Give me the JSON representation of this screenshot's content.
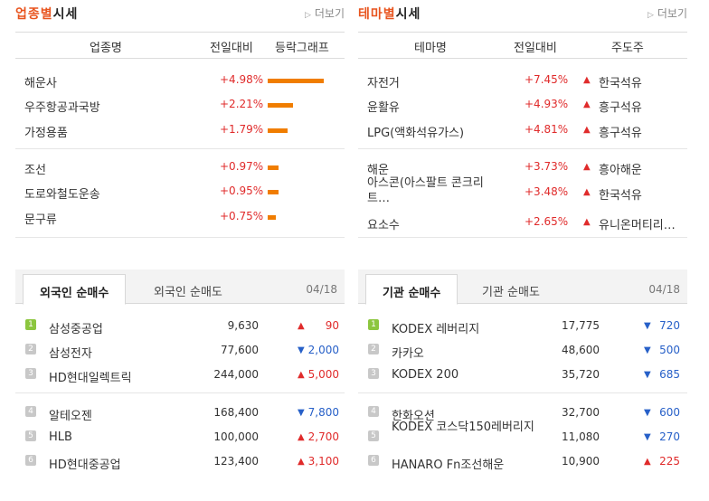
{
  "industry": {
    "title_a": "업종별",
    "title_b": "시세",
    "more": "더보기",
    "cols": [
      "업종명",
      "전일대비",
      "등락그래프"
    ],
    "rows": [
      {
        "name": "해운사",
        "pct": "+4.98%",
        "level": 4.98
      },
      {
        "name": "우주항공과국방",
        "pct": "+2.21%",
        "level": 2.21
      },
      {
        "name": "가정용품",
        "pct": "+1.79%",
        "level": 1.79
      },
      {
        "name": "조선",
        "pct": "+0.97%",
        "level": 0.97
      },
      {
        "name": "도로와철도운송",
        "pct": "+0.95%",
        "level": 0.95
      },
      {
        "name": "문구류",
        "pct": "+0.75%",
        "level": 0.75
      }
    ]
  },
  "theme": {
    "title_a": "테마별",
    "title_b": "시세",
    "more": "더보기",
    "cols": [
      "테마명",
      "전일대비",
      "주도주"
    ],
    "rows": [
      {
        "name": "자전거",
        "pct": "+7.45%",
        "leader": "한국석유"
      },
      {
        "name": "윤활유",
        "pct": "+4.93%",
        "leader": "흥구석유"
      },
      {
        "name": "LPG(액화석유가스)",
        "pct": "+4.81%",
        "leader": "흥구석유"
      },
      {
        "name": "해운",
        "pct": "+3.73%",
        "leader": "흥아해운"
      },
      {
        "name": "아스콘(아스팔트 콘크리트…",
        "pct": "+3.48%",
        "leader": "한국석유"
      },
      {
        "name": "요소수",
        "pct": "+2.65%",
        "leader": "유니온머티리…"
      }
    ]
  },
  "foreign": {
    "tab_active": "외국인 순매수",
    "tab_inactive": "외국인 순매도",
    "date": "04/18",
    "rows": [
      {
        "rank": "1",
        "name": "삼성중공업",
        "price": "9,630",
        "dir": "up",
        "change": "90"
      },
      {
        "rank": "2",
        "name": "삼성전자",
        "price": "77,600",
        "dir": "down",
        "change": "2,000"
      },
      {
        "rank": "3",
        "name": "HD현대일렉트릭",
        "price": "244,000",
        "dir": "up",
        "change": "5,000"
      },
      {
        "rank": "4",
        "name": "알테오젠",
        "price": "168,400",
        "dir": "down",
        "change": "7,800"
      },
      {
        "rank": "5",
        "name": "HLB",
        "price": "100,000",
        "dir": "up",
        "change": "2,700"
      },
      {
        "rank": "6",
        "name": "HD현대중공업",
        "price": "123,400",
        "dir": "up",
        "change": "3,100"
      }
    ]
  },
  "institution": {
    "tab_active": "기관 순매수",
    "tab_inactive": "기관 순매도",
    "date": "04/18",
    "rows": [
      {
        "rank": "1",
        "name": "KODEX 레버리지",
        "price": "17,775",
        "dir": "down",
        "change": "720"
      },
      {
        "rank": "2",
        "name": "카카오",
        "price": "48,600",
        "dir": "down",
        "change": "500"
      },
      {
        "rank": "3",
        "name": "KODEX 200",
        "price": "35,720",
        "dir": "down",
        "change": "685"
      },
      {
        "rank": "4",
        "name": "한화오션",
        "price": "32,700",
        "dir": "down",
        "change": "600"
      },
      {
        "rank": "5",
        "name": "KODEX 코스닥150레버리지",
        "price": "11,080",
        "dir": "down",
        "change": "270"
      },
      {
        "rank": "6",
        "name": "HANARO Fn조선해운",
        "price": "10,900",
        "dir": "up",
        "change": "225"
      }
    ]
  },
  "icons": {
    "more": "chevron-right-icon",
    "up": "triangle-up-icon",
    "down": "triangle-down-icon"
  },
  "colors": {
    "accent": "#e8541e",
    "up": "#e02b2b",
    "down": "#2760c8",
    "bar": "#f07d00",
    "rank_top": "#8cc63f"
  }
}
